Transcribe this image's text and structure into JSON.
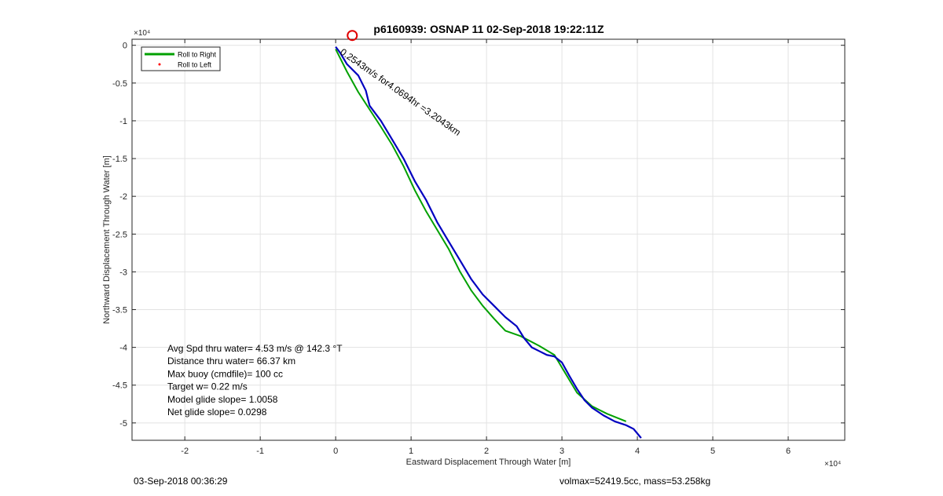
{
  "chart_data": {
    "type": "line",
    "title": "p6160939: OSNAP 11 02-Sep-2018 19:22:11Z",
    "xlabel": "Eastward Displacement Through Water [m]",
    "ylabel": "Northward Displacement Through Water [m]",
    "x_exponent_label": "×10⁴",
    "y_exponent_label": "×10⁴",
    "xlim": [
      -2.7,
      6.75
    ],
    "ylim": [
      -5.23,
      0.08
    ],
    "xticks": [
      -2,
      -1,
      0,
      1,
      2,
      3,
      4,
      5,
      6
    ],
    "yticks": [
      0,
      -0.5,
      -1,
      -1.5,
      -2,
      -2.5,
      -3,
      -3.5,
      -4,
      -4.5,
      -5
    ],
    "grid": true,
    "legend": {
      "placement": "top-left",
      "entries": [
        {
          "label": "Roll to Right",
          "color": "#00a000",
          "style": "line"
        },
        {
          "label": "Roll to Left",
          "color": "#ff0000",
          "style": "point"
        }
      ]
    },
    "series": [
      {
        "name": "Roll to Right",
        "color": "#00a000",
        "x": [
          0.0,
          0.15,
          0.3,
          0.45,
          0.6,
          0.75,
          0.9,
          1.05,
          1.2,
          1.35,
          1.5,
          1.65,
          1.8,
          1.95,
          2.1,
          2.25,
          2.45,
          2.7,
          2.9,
          3.05,
          3.2,
          3.4,
          3.6,
          3.85
        ],
        "y": [
          -0.05,
          -0.35,
          -0.62,
          -0.85,
          -1.08,
          -1.32,
          -1.6,
          -1.92,
          -2.2,
          -2.45,
          -2.7,
          -3.0,
          -3.25,
          -3.45,
          -3.62,
          -3.78,
          -3.85,
          -3.98,
          -4.1,
          -4.35,
          -4.6,
          -4.78,
          -4.88,
          -4.98
        ]
      },
      {
        "name": "Track",
        "color": "#0000c0",
        "x": [
          0.0,
          0.06,
          0.15,
          0.3,
          0.4,
          0.45,
          0.6,
          0.75,
          0.9,
          1.05,
          1.2,
          1.35,
          1.5,
          1.65,
          1.8,
          1.95,
          2.1,
          2.25,
          2.4,
          2.45,
          2.5,
          2.6,
          2.7,
          2.8,
          2.9,
          3.0,
          3.1,
          3.2,
          3.3,
          3.4,
          3.55,
          3.7,
          3.85,
          3.95,
          4.05
        ],
        "y": [
          -0.02,
          -0.1,
          -0.25,
          -0.4,
          -0.6,
          -0.8,
          -1.0,
          -1.25,
          -1.5,
          -1.8,
          -2.05,
          -2.35,
          -2.6,
          -2.85,
          -3.1,
          -3.3,
          -3.45,
          -3.6,
          -3.72,
          -3.8,
          -3.88,
          -4.0,
          -4.05,
          -4.1,
          -4.12,
          -4.2,
          -4.38,
          -4.55,
          -4.7,
          -4.8,
          -4.9,
          -4.98,
          -5.03,
          -5.08,
          -5.2
        ]
      }
    ],
    "markers": [
      {
        "name": "start-marker",
        "x": 0.22,
        "y": 0.13,
        "color": "#e00000",
        "shape": "circle"
      }
    ],
    "annotations": [
      {
        "text": "Avg Spd thru water=  4.53 m/s @ 142.3 °T"
      },
      {
        "text": "Distance thru water= 66.37 km"
      },
      {
        "text": "Max buoy (cmdfile)= 100 cc"
      },
      {
        "text": "Target w= 0.22 m/s"
      },
      {
        "text": "Model glide slope= 1.0058"
      },
      {
        "text": "Net glide slope= 0.0298"
      }
    ],
    "rotated_annotation": {
      "text": "0.2543m/s for4.0694hr =3.2043km"
    }
  },
  "footer": {
    "left": "03-Sep-2018 00:36:29",
    "right": "volmax=52419.5cc, mass=53.258kg"
  }
}
